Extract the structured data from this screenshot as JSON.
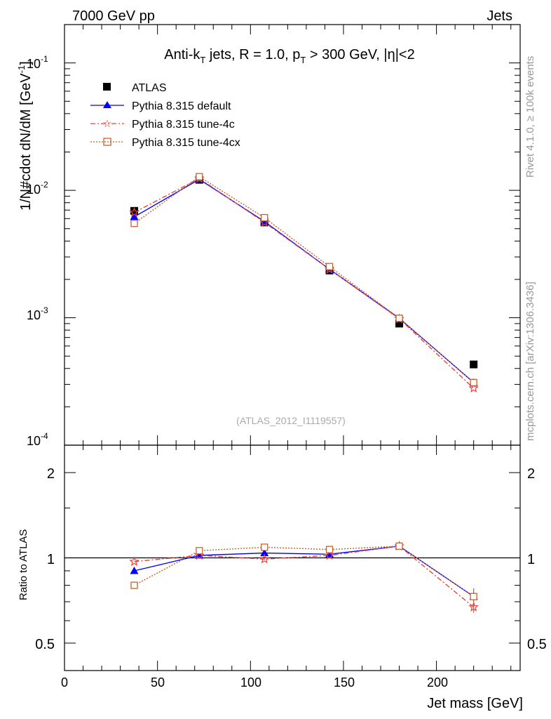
{
  "header": {
    "left": "7000 GeV pp",
    "right": "Jets"
  },
  "side_labels": {
    "rivet": "Rivet 4.1.0, ≥ 100k events",
    "mcplots": "mcplots.cern.ch [arXiv:1306.3436]"
  },
  "plot_title": {
    "main": "Anti-k",
    "main_sub": "T",
    "mid": " jets, R = 1.0, p",
    "mid_sub": "T",
    "tail": " > 300 GeV, |η|<2"
  },
  "analysis_id": "(ATLAS_2012_I1119557)",
  "axis_labels": {
    "y_top": "1/N#cdot dN/dM [GeV",
    "y_top_sup": "-1",
    "y_top_close": "]",
    "y_bottom": "Ratio to ATLAS",
    "x": "Jet mass [GeV]"
  },
  "tick_labels": {
    "x": [
      "0",
      "50",
      "100",
      "150",
      "200"
    ],
    "y_top_exponents": [
      "-1",
      "-2",
      "-3",
      "-4"
    ],
    "y_top_base": "10",
    "y_bottom": [
      "2",
      "1",
      "0.5"
    ]
  },
  "colors": {
    "atlas": "#000000",
    "default": "#0000ff",
    "tune4c": "#e8453c",
    "tune4cx": "#c8622a"
  },
  "chart_data": [
    {
      "type": "line",
      "title": "Anti-kT jets, R = 1.0, pT > 300 GeV, |η|<2",
      "xlabel": "Jet mass [GeV]",
      "ylabel": "1/N#cdot dN/dM [GeV-1]",
      "yscale": "log",
      "xlim": [
        0,
        245
      ],
      "ylim": [
        0.0001,
        0.2
      ],
      "x": [
        37.5,
        72.5,
        107.5,
        142.5,
        180,
        220
      ],
      "series": [
        {
          "name": "ATLAS",
          "marker": "square",
          "values": [
            0.0069,
            0.0121,
            0.0056,
            0.00235,
            0.0009,
            0.00043
          ]
        },
        {
          "name": "Pythia 8.315 default",
          "marker": "triangle",
          "values": [
            0.0062,
            0.0122,
            0.0057,
            0.0024,
            0.00099,
            0.00031
          ]
        },
        {
          "name": "Pythia 8.315 tune-4c",
          "marker": "star",
          "values": [
            0.0067,
            0.0124,
            0.0056,
            0.0024,
            0.00098,
            0.00028
          ]
        },
        {
          "name": "Pythia 8.315 tune-4cx",
          "marker": "open-square",
          "values": [
            0.0055,
            0.0128,
            0.0061,
            0.00252,
            0.00099,
            0.00031
          ]
        }
      ],
      "legend": "top-left"
    },
    {
      "type": "line",
      "ylabel": "Ratio to ATLAS",
      "xlabel": "Jet mass [GeV]",
      "yscale": "log",
      "xlim": [
        0,
        245
      ],
      "ylim": [
        0.4,
        2.5
      ],
      "x": [
        37.5,
        72.5,
        107.5,
        142.5,
        180,
        220
      ],
      "reference_line": 1,
      "series": [
        {
          "name": "Pythia 8.315 default",
          "marker": "triangle",
          "values": [
            0.9,
            1.02,
            1.04,
            1.03,
            1.1,
            0.73
          ]
        },
        {
          "name": "Pythia 8.315 tune-4c",
          "marker": "star",
          "values": [
            0.97,
            1.02,
            0.99,
            1.02,
            1.1,
            0.67
          ]
        },
        {
          "name": "Pythia 8.315 tune-4cx",
          "marker": "open-square",
          "values": [
            0.8,
            1.06,
            1.09,
            1.07,
            1.1,
            0.73
          ]
        }
      ]
    }
  ]
}
